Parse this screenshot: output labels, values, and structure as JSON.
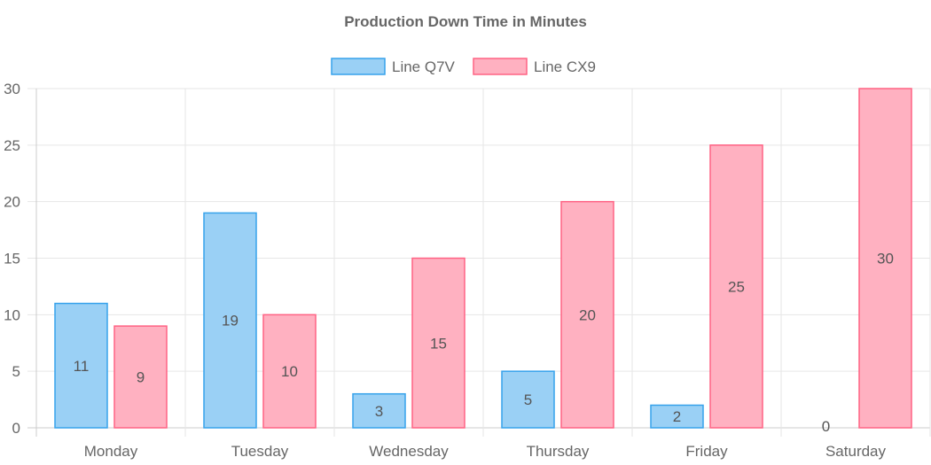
{
  "chart_data": {
    "type": "bar",
    "title": "Production Down Time in Minutes",
    "categories": [
      "Monday",
      "Tuesday",
      "Wednesday",
      "Thursday",
      "Friday",
      "Saturday"
    ],
    "series": [
      {
        "name": "Line Q7V",
        "values": [
          11,
          19,
          3,
          5,
          2,
          0
        ],
        "color": "#9ad0f5",
        "border_color": "#36a2eb"
      },
      {
        "name": "Line CX9",
        "values": [
          9,
          10,
          15,
          20,
          25,
          30
        ],
        "color": "#ffb1c1",
        "border_color": "#ff6384"
      }
    ],
    "ylim": [
      0,
      30
    ],
    "yticks": [
      0,
      5,
      10,
      15,
      20,
      25,
      30
    ],
    "xlabel": "",
    "ylabel": "",
    "grid": true,
    "legend_position": "top",
    "data_labels": true
  }
}
